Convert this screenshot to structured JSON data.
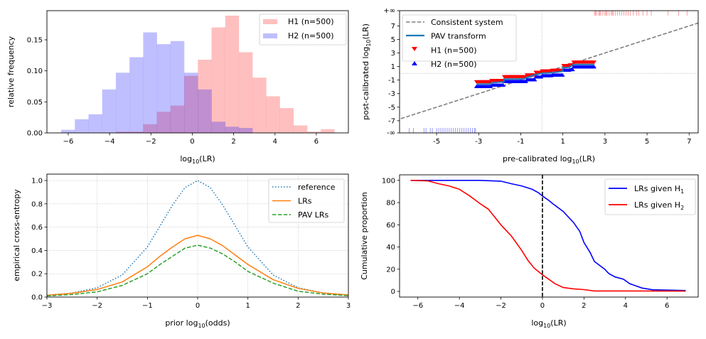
{
  "chart_data": [
    {
      "type": "bar",
      "panel": "top-left",
      "xlabel": {
        "pre": "log",
        "sub": "10",
        "post": "(LR)"
      },
      "ylabel": "relative frequency",
      "xlim": [
        -7.03,
        7.55
      ],
      "ylim": [
        0,
        0.197
      ],
      "xticks": [
        -6,
        -4,
        -2,
        0,
        2,
        4,
        6
      ],
      "yticks": [
        0,
        0.05,
        0.1,
        0.15
      ],
      "ytick_labels": [
        "0.00",
        "0.05",
        "0.10",
        "0.15"
      ],
      "bin_start": -6.34,
      "bin_width": 0.661,
      "legend_position": "upper right",
      "series": [
        {
          "name": "H1 (n=500)",
          "color": "#ff0000",
          "alpha": 0.25,
          "first_bin": 4,
          "values": [
            0.002,
            0.002,
            0.014,
            0.034,
            0.044,
            0.092,
            0.118,
            0.17,
            0.189,
            0.13,
            0.089,
            0.059,
            0.04,
            0.012,
            0.002,
            0.006
          ]
        },
        {
          "name": "H2 (n=500)",
          "color": "#0000ff",
          "alpha": 0.25,
          "first_bin": 0,
          "values": [
            0.005,
            0.022,
            0.03,
            0.07,
            0.097,
            0.122,
            0.162,
            0.143,
            0.148,
            0.097,
            0.07,
            0.018,
            0.01,
            0.008
          ]
        }
      ]
    },
    {
      "type": "line",
      "panel": "top-right",
      "xlabel": {
        "pre": "pre-calibrated log",
        "sub": "10",
        "post": "(LR)"
      },
      "ylabel": {
        "pre": "post-calibrated log",
        "sub": "10",
        "post": "(LR)"
      },
      "xlim": [
        -6.76,
        7.43
      ],
      "ylim": [
        -8.8,
        9.25
      ],
      "xticks": [
        -5,
        -3,
        -1,
        1,
        3,
        5,
        7
      ],
      "xtick_labels": [
        "-5",
        "-3",
        "-1",
        "1",
        "3",
        "5",
        "7"
      ],
      "yticks": [
        -7,
        -5,
        -3,
        -1,
        1,
        3,
        5,
        7
      ],
      "ytick_labels": [
        "-7",
        "-5",
        "-3",
        "-1",
        "1",
        "3",
        "5",
        "7"
      ],
      "inf_labels": {
        "top": "+∞",
        "bottom": "-∞"
      },
      "legend_position": "upper left",
      "series": [
        {
          "name": "Consistent system",
          "color": "#808080",
          "style": "dashed",
          "relation": "y = x"
        },
        {
          "name": "PAV transform",
          "color": "#1f77b4",
          "style": "solid",
          "points": [
            [
              -3.1,
              -1.6
            ],
            [
              -2.4,
              -1.6
            ],
            [
              -2.4,
              -1.4
            ],
            [
              -1.8,
              -1.25
            ],
            [
              -1.8,
              -0.85
            ],
            [
              -0.9,
              -0.85
            ],
            [
              -0.7,
              -0.6
            ],
            [
              -0.3,
              -0.2
            ],
            [
              0,
              0
            ],
            [
              0.5,
              0.1
            ],
            [
              1,
              0.3
            ],
            [
              1,
              0.8
            ],
            [
              1.3,
              0.9
            ],
            [
              1.5,
              1.3
            ],
            [
              2.5,
              1.3
            ]
          ]
        },
        {
          "name": "H1 (n=500)",
          "color": "#ff0000",
          "marker": "triangle-down",
          "rug_top": [
            2.5,
            2.55,
            2.6,
            2.7,
            2.75,
            2.8,
            2.9,
            3.0,
            3.05,
            3.1,
            3.2,
            3.3,
            3.35,
            3.4,
            3.5,
            3.6,
            3.7,
            3.8,
            3.9,
            4.0,
            4.1,
            4.2,
            4.35,
            4.5,
            4.6,
            4.8,
            5.0,
            5.2,
            6.0,
            6.5,
            6.9
          ]
        },
        {
          "name": "H2 (n=500)",
          "color": "#0000ff",
          "marker": "triangle-up",
          "rug_bottom": [
            -6.3,
            -6.1,
            -5.6,
            -5.5,
            -5.3,
            -5.2,
            -5.0,
            -4.9,
            -4.8,
            -4.7,
            -4.6,
            -4.5,
            -4.4,
            -4.3,
            -4.2,
            -4.1,
            -4.0,
            -3.9,
            -3.8,
            -3.7,
            -3.6,
            -3.5,
            -3.4,
            -3.3,
            -3.2,
            -3.15
          ]
        }
      ]
    },
    {
      "type": "line",
      "panel": "bottom-left",
      "xlabel": {
        "pre": "prior log",
        "sub": "10",
        "post": "(odds)"
      },
      "ylabel": "empirical cross-entropy",
      "xlim": [
        -3,
        3
      ],
      "ylim": [
        0,
        1.055
      ],
      "grid": true,
      "xticks": [
        -3,
        -2,
        -1,
        0,
        1,
        2,
        3
      ],
      "yticks": [
        0,
        0.2,
        0.4,
        0.6,
        0.8,
        1.0
      ],
      "ytick_labels": [
        "0.0",
        "0.2",
        "0.4",
        "0.6",
        "0.8",
        "1.0"
      ],
      "legend_position": "upper right",
      "x": [
        -3,
        -2.5,
        -2,
        -1.5,
        -1,
        -0.75,
        -0.5,
        -0.25,
        0,
        0.25,
        0.5,
        0.75,
        1,
        1.5,
        2,
        2.5,
        3
      ],
      "series": [
        {
          "name": "reference",
          "color": "#1f77b4",
          "style": "dotted",
          "values": [
            0.015,
            0.035,
            0.08,
            0.19,
            0.43,
            0.61,
            0.79,
            0.94,
            1.0,
            0.94,
            0.79,
            0.61,
            0.43,
            0.19,
            0.08,
            0.035,
            0.015
          ]
        },
        {
          "name": "LRs",
          "color": "#ff7f0e",
          "style": "solid",
          "values": [
            0.015,
            0.033,
            0.065,
            0.13,
            0.26,
            0.35,
            0.43,
            0.5,
            0.53,
            0.5,
            0.44,
            0.36,
            0.28,
            0.15,
            0.075,
            0.035,
            0.018
          ]
        },
        {
          "name": "PAV LRs",
          "color": "#2ca02c",
          "style": "dashed",
          "values": [
            0.01,
            0.022,
            0.045,
            0.1,
            0.2,
            0.28,
            0.35,
            0.42,
            0.445,
            0.42,
            0.37,
            0.3,
            0.22,
            0.12,
            0.05,
            0.025,
            0.012
          ]
        }
      ]
    },
    {
      "type": "line",
      "panel": "bottom-right",
      "xlabel": {
        "pre": "log",
        "sub": "10",
        "post": "(LR)"
      },
      "ylabel": "Cumulative proportion",
      "xlim": [
        -6.88,
        7.5
      ],
      "ylim": [
        -5.1,
        105
      ],
      "xticks": [
        -6,
        -4,
        -2,
        0,
        2,
        4,
        6
      ],
      "yticks": [
        0,
        20,
        40,
        60,
        80,
        100
      ],
      "vline": {
        "x": 0,
        "color": "#000000",
        "style": "dashed"
      },
      "legend_position": "upper right",
      "series": [
        {
          "name": {
            "pre": "LRs given H",
            "sub": "1"
          },
          "color": "#0000ff",
          "points": [
            [
              -6.35,
              100
            ],
            [
              -3,
              100
            ],
            [
              -2,
              99.3
            ],
            [
              -1.5,
              97
            ],
            [
              -1,
              95
            ],
            [
              -0.5,
              92
            ],
            [
              -0.2,
              89
            ],
            [
              0,
              86
            ],
            [
              0.3,
              82
            ],
            [
              0.5,
              79
            ],
            [
              1,
              72
            ],
            [
              1.5,
              62
            ],
            [
              1.8,
              54
            ],
            [
              2,
              44
            ],
            [
              2.3,
              35
            ],
            [
              2.5,
              27
            ],
            [
              3,
              20
            ],
            [
              3.2,
              16
            ],
            [
              3.5,
              13
            ],
            [
              3.9,
              11
            ],
            [
              4.2,
              7
            ],
            [
              4.5,
              5
            ],
            [
              4.8,
              3
            ],
            [
              5.3,
              1.5
            ],
            [
              6.9,
              0.8
            ]
          ]
        },
        {
          "name": {
            "pre": "LRs given H",
            "sub": "2"
          },
          "color": "#ff0000",
          "points": [
            [
              -6.35,
              100
            ],
            [
              -5.5,
              99.5
            ],
            [
              -5,
              97
            ],
            [
              -4.5,
              95
            ],
            [
              -4,
              92
            ],
            [
              -3.5,
              86
            ],
            [
              -3,
              79
            ],
            [
              -2.6,
              74
            ],
            [
              -2.3,
              67
            ],
            [
              -2,
              60
            ],
            [
              -1.5,
              50
            ],
            [
              -1,
              37
            ],
            [
              -0.7,
              28
            ],
            [
              -0.4,
              21
            ],
            [
              0,
              15
            ],
            [
              0.3,
              11
            ],
            [
              0.6,
              7
            ],
            [
              1,
              3.5
            ],
            [
              1.5,
              2.3
            ],
            [
              2,
              1.6
            ],
            [
              2.5,
              0.4
            ],
            [
              6.9,
              0.3
            ]
          ]
        }
      ]
    }
  ]
}
